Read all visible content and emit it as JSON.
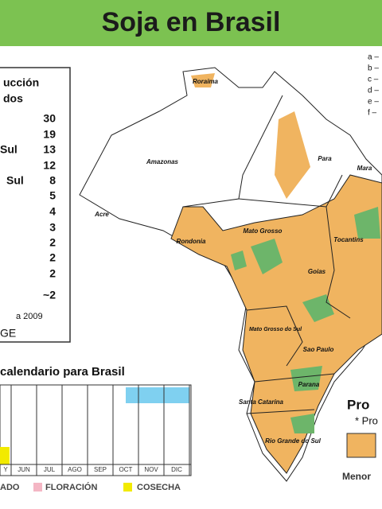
{
  "header": {
    "title": "Soja en Brasil"
  },
  "production_table": {
    "title_lines": [
      "ucción",
      "dos"
    ],
    "rows": [
      {
        "value": 30
      },
      {
        "value": 19
      },
      {
        "label": "Sul",
        "value": 13
      },
      {
        "value": 12
      },
      {
        "label": "Sul",
        "value": 8
      },
      {
        "value": 5
      },
      {
        "value": 4
      },
      {
        "value": 3
      },
      {
        "value": 2
      },
      {
        "value": 2
      },
      {
        "value": 2
      },
      {
        "value": "~2"
      }
    ],
    "notes": [
      "a 2009",
      "GE"
    ]
  },
  "calendar": {
    "title": "calendario para Brasil",
    "months": [
      "Y",
      "JUN",
      "JUL",
      "AGO",
      "SEP",
      "OCT",
      "NOV",
      "DIC"
    ],
    "legend": [
      "ADO",
      "FLORACIÓN",
      "COSECHA"
    ]
  },
  "map": {
    "labels": [
      "Roraima",
      "Amazonas",
      "Para",
      "Mara",
      "Acre",
      "Rondonia",
      "Mato Grosso",
      "Tocantins",
      "Goias",
      "Mato Grosso do Sul",
      "Sao Paulo",
      "Parana",
      "Santa Catarina",
      "Rio Grande do Sul"
    ]
  },
  "legend": {
    "keys": [
      "a –",
      "b –",
      "c –",
      "d –",
      "e –",
      "f –"
    ],
    "title": "Pro",
    "note": "* Pro",
    "scale_low": "Menor"
  }
}
